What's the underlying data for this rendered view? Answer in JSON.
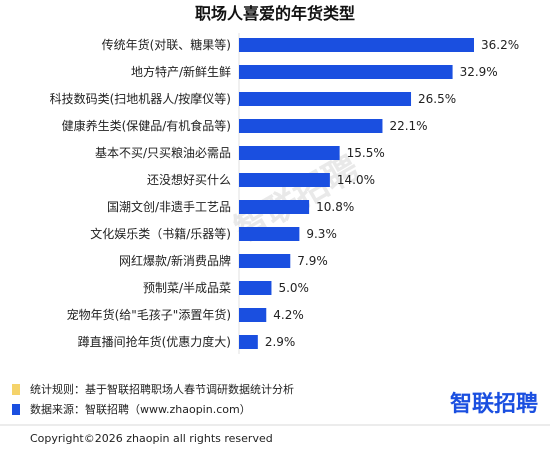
{
  "chart_data": {
    "type": "bar",
    "orientation": "horizontal",
    "title": "职场人喜爱的年货类型",
    "categories": [
      "传统年货(对联、糖果等)",
      "地方特产/新鲜生鲜",
      "科技数码类(扫地机器人/按摩仪等)",
      "健康养生类(保健品/有机食品等)",
      "基本不买/只买粮油必需品",
      "还没想好买什么",
      "国潮文创/非遗手工艺品",
      "文化娱乐类（书籍/乐器等)",
      "网红爆款/新消费品牌",
      "预制菜/半成品菜",
      "宠物年货(给\"毛孩子\"添置年货)",
      "蹲直播间抢年货(优惠力度大)"
    ],
    "values": [
      36.2,
      32.9,
      26.5,
      22.1,
      15.5,
      14.0,
      10.8,
      9.3,
      7.9,
      5.0,
      4.2,
      2.9
    ],
    "value_labels": [
      "36.2%",
      "32.9%",
      "26.5%",
      "22.1%",
      "15.5%",
      "14.0%",
      "10.8%",
      "9.3%",
      "7.9%",
      "5.0%",
      "4.2%",
      "2.9%"
    ],
    "unit": "%",
    "xlim": [
      0,
      36.2
    ],
    "grid": false,
    "colors": {
      "bar": "#1a4fe0",
      "legend_rule": "#f5d36a",
      "legend_source": "#1a4fe0"
    }
  },
  "footer": {
    "rule_text": "统计规则：基于智联招聘职场人春节调研数据统计分析",
    "source_text": "数据来源：智联招聘（www.zhaopin.com）",
    "copyright": "Copyright©2026 zhaopin all rights reserved",
    "brand": "智联招聘"
  },
  "watermark": "智联招聘"
}
